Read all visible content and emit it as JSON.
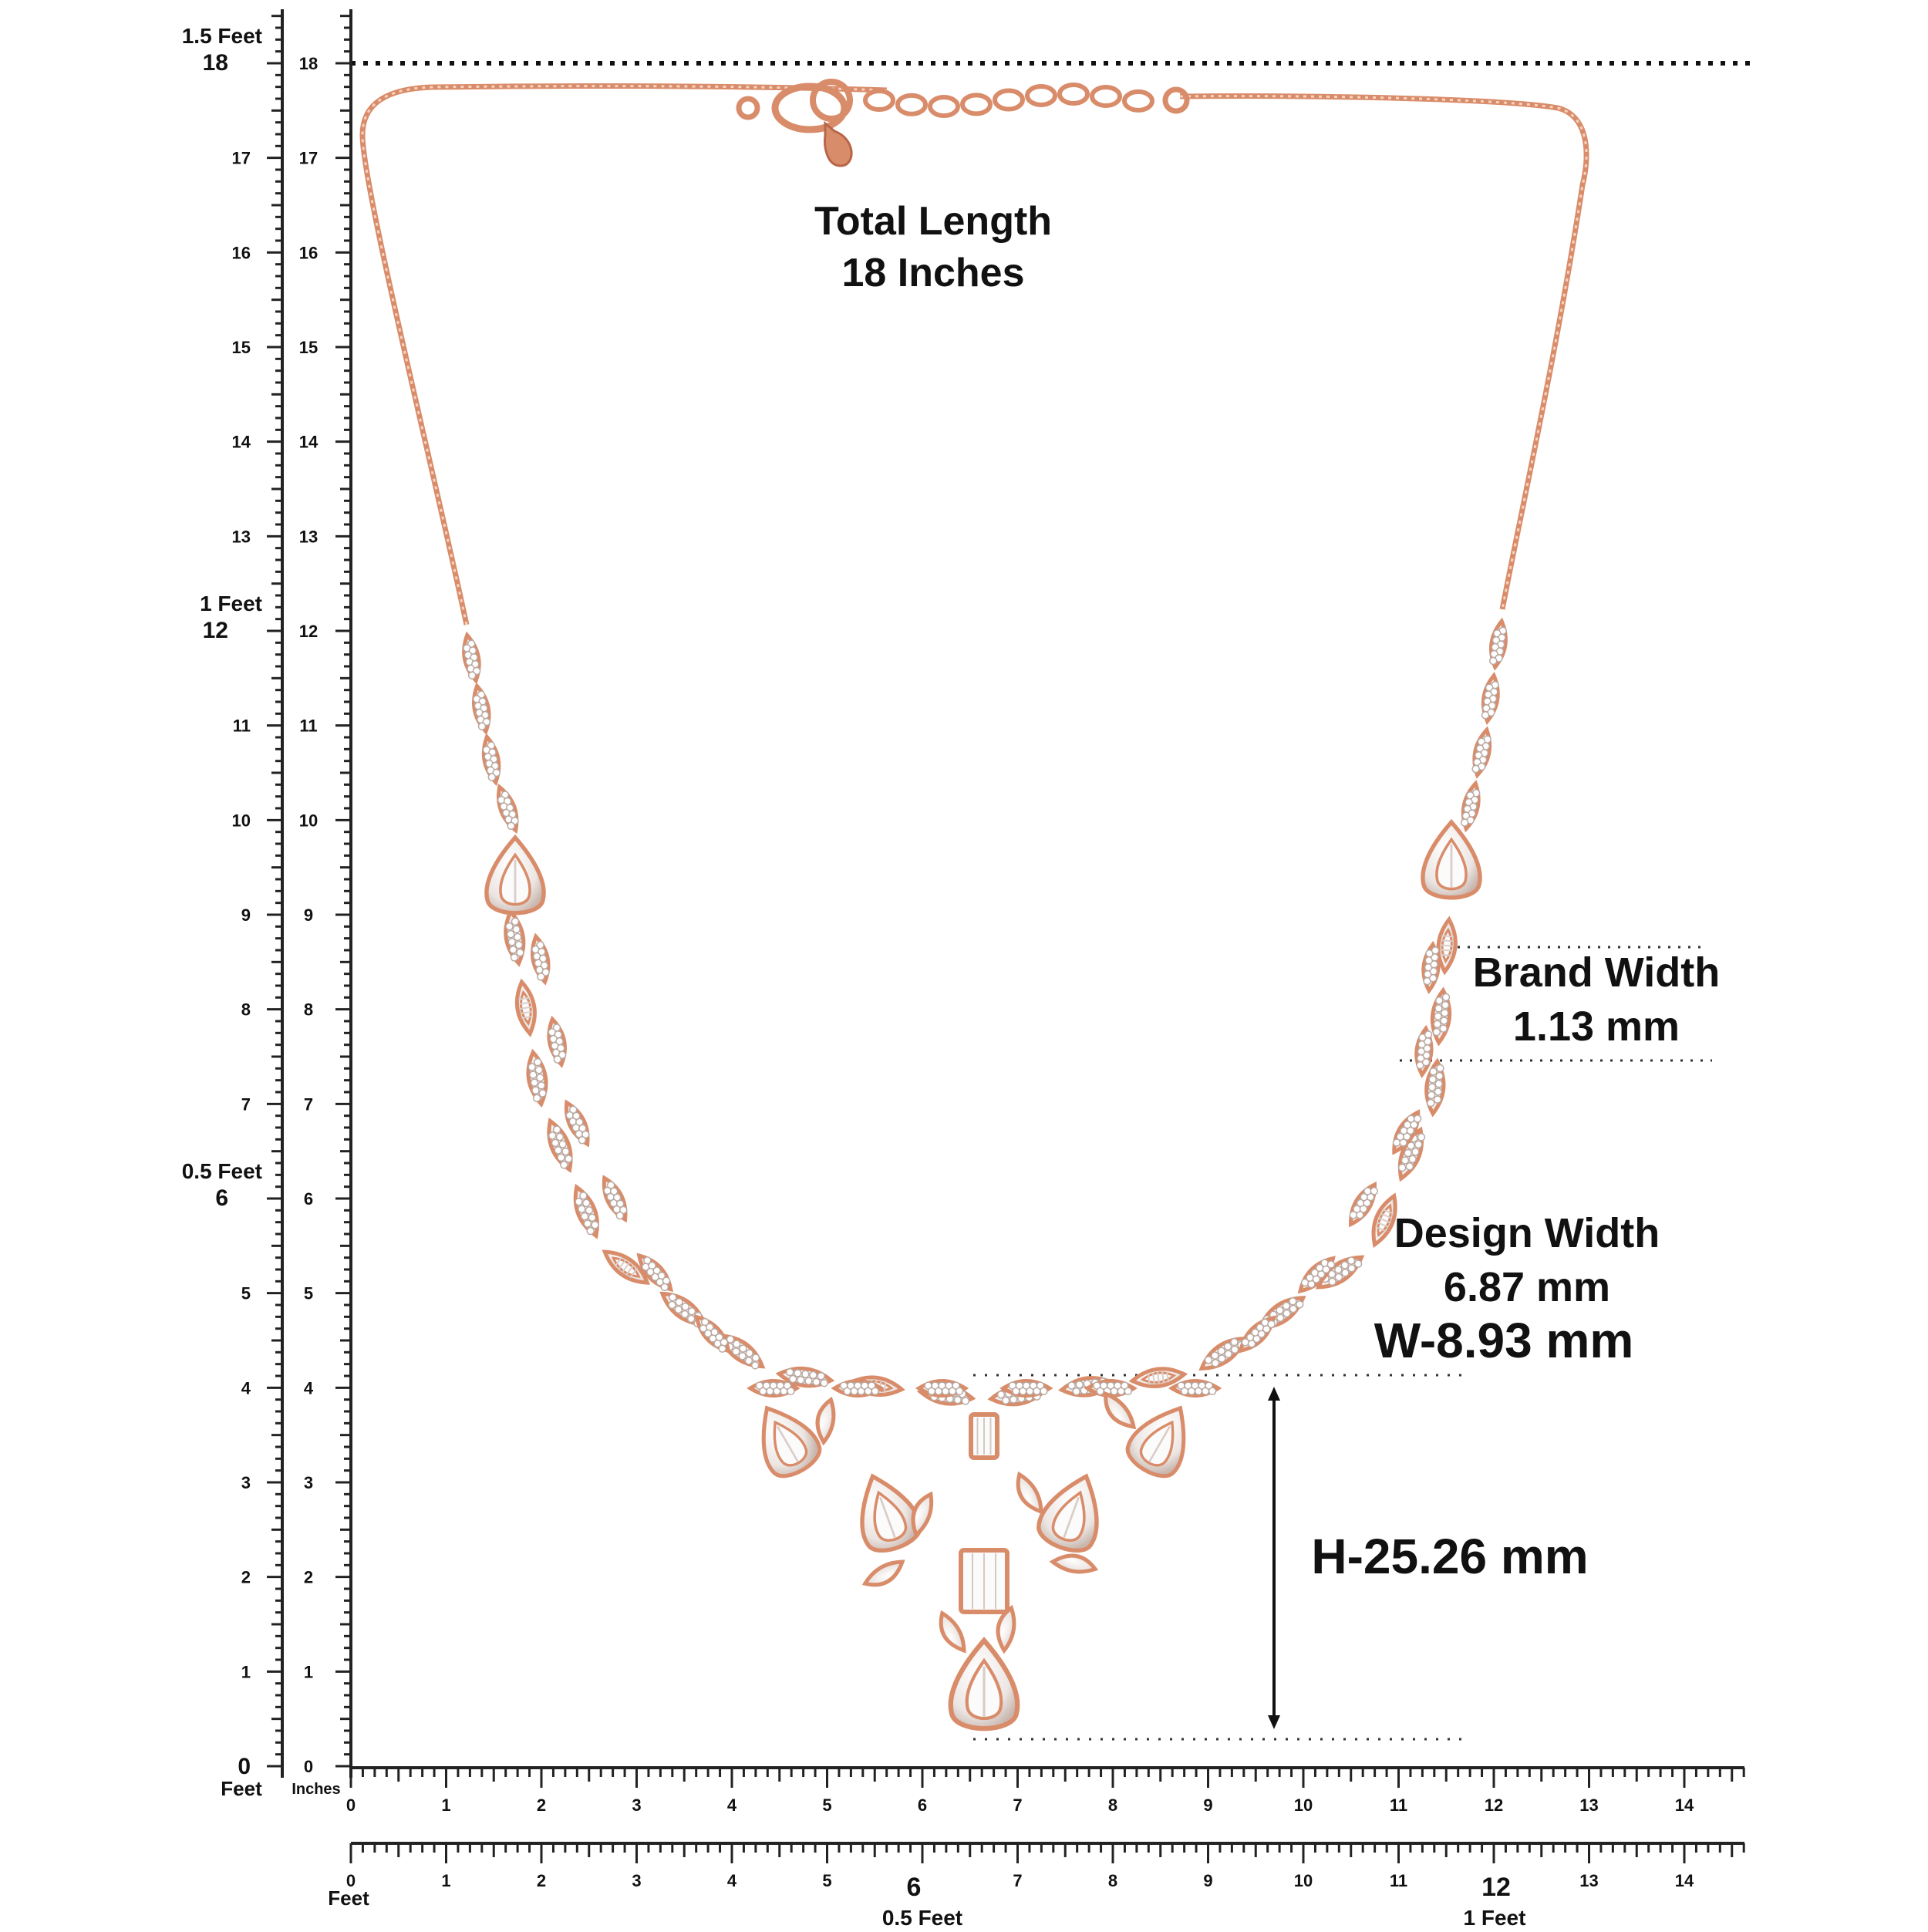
{
  "annotations": {
    "total_length_title": "Total Length",
    "total_length_value": "18 Inches",
    "band_width_title": "Brand Width",
    "band_width_value": "1.13 mm",
    "design_width_title": "Design Width",
    "design_width_value": "6.87 mm",
    "pendant_width": "W-8.93 mm",
    "pendant_height": "H-25.26 mm"
  },
  "vertical_ruler": {
    "feet_marks": [
      {
        "inch": 18,
        "label": "1.5 Feet"
      },
      {
        "inch": 12,
        "label": "1 Feet"
      },
      {
        "inch": 6,
        "label": "0.5 Feet"
      },
      {
        "inch": 0,
        "label": "0"
      }
    ],
    "feet_unit_label": "Feet",
    "inches_unit_label": "Inches",
    "inch_labels": [
      "0",
      "1",
      "2",
      "3",
      "4",
      "5",
      "6",
      "7",
      "8",
      "9",
      "10",
      "11",
      "12",
      "13",
      "14",
      "15",
      "16",
      "17",
      "18"
    ]
  },
  "horizontal_ruler_top": {
    "inch_labels": [
      "0",
      "1",
      "2",
      "3",
      "4",
      "5",
      "6",
      "7",
      "8",
      "9",
      "10",
      "11",
      "12",
      "13",
      "14"
    ]
  },
  "horizontal_ruler_bottom": {
    "inch_labels": [
      "0",
      "1",
      "2",
      "3",
      "4",
      "5",
      "6",
      "7",
      "8",
      "9",
      "10",
      "11",
      "12",
      "13",
      "14"
    ],
    "feet_unit_label": "Feet",
    "half_foot_label": "0.5 Feet",
    "one_foot_label": "1 Feet"
  },
  "colors": {
    "rose_gold": "#d98c6a",
    "rose_gold_dark": "#b8664a",
    "stone": "#f4f0ee",
    "ruler": "#222222",
    "text": "#111111"
  },
  "icons": {
    "necklace": "rose-gold-cz-necklace-image",
    "clasp": "lobster-clasp-icon",
    "height_arrow": "double-arrow-vertical-icon"
  }
}
